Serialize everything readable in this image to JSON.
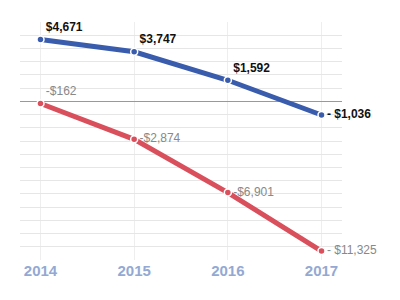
{
  "chart_data": {
    "type": "line",
    "categories": [
      "2014",
      "2015",
      "2016",
      "2017"
    ],
    "series": [
      {
        "color": "#3a5cad",
        "values": [
          4671,
          3747,
          1592,
          -1036
        ],
        "value_labels": [
          "$4,671",
          "$3,747",
          "$1,592",
          "- $1,036"
        ]
      },
      {
        "color": "#d94f5c",
        "values": [
          -162,
          -2874,
          -6901,
          -11325
        ],
        "value_labels": [
          "-$162",
          "-$2,874",
          "-$6,901",
          "- $11,325"
        ]
      }
    ],
    "ylim": [
      -12000,
      6000
    ],
    "yticks": [
      -12000,
      -11000,
      -10000,
      -9000,
      -8000,
      -7000,
      -6000,
      -5000,
      -4000,
      -3000,
      -2000,
      -1000,
      0,
      1000,
      2000,
      3000,
      4000,
      5000,
      6000
    ],
    "grid": true,
    "data_labels": true,
    "tick_labels": "x",
    "marker": "circle"
  }
}
